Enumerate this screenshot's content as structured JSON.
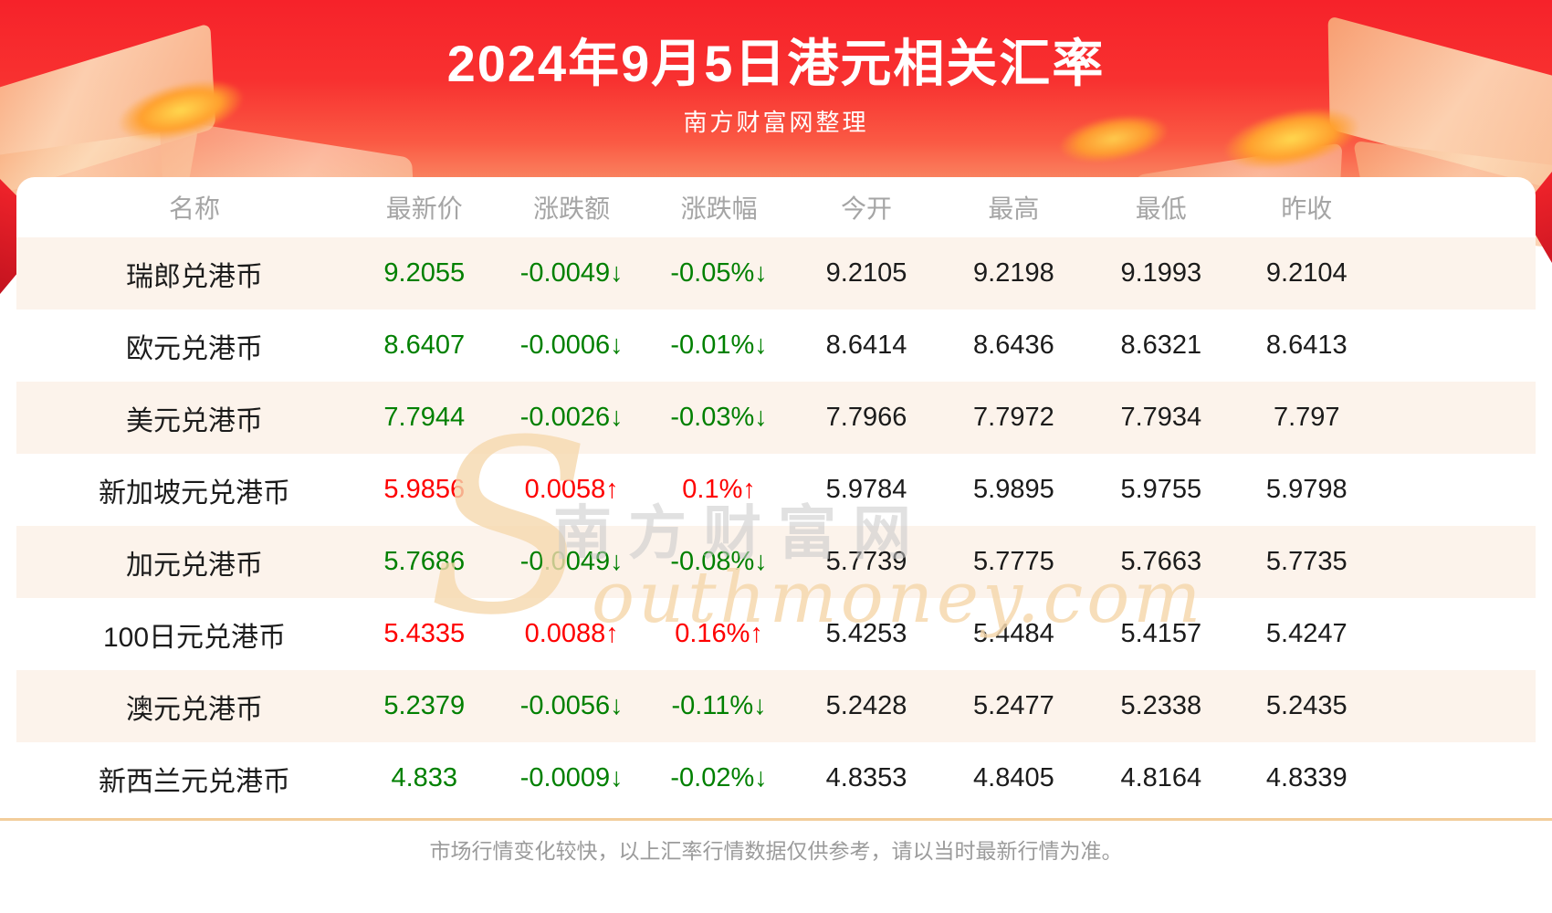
{
  "banner": {
    "title": "2024年9月5日港元相关汇率",
    "subtitle": "南方财富网整理"
  },
  "table": {
    "columns": [
      {
        "key": "name",
        "label": "名称"
      },
      {
        "key": "latest",
        "label": "最新价"
      },
      {
        "key": "change",
        "label": "涨跌额"
      },
      {
        "key": "change_pct",
        "label": "涨跌幅"
      },
      {
        "key": "open",
        "label": "今开"
      },
      {
        "key": "high",
        "label": "最高"
      },
      {
        "key": "low",
        "label": "最低"
      },
      {
        "key": "prev_close",
        "label": "昨收"
      }
    ],
    "rows": [
      {
        "name": "瑞郎兑港币",
        "latest": "9.2055",
        "change": "-0.0049↓",
        "change_pct": "-0.05%↓",
        "open": "9.2105",
        "high": "9.2198",
        "low": "9.1993",
        "prev_close": "9.2104",
        "trend": "down"
      },
      {
        "name": "欧元兑港币",
        "latest": "8.6407",
        "change": "-0.0006↓",
        "change_pct": "-0.01%↓",
        "open": "8.6414",
        "high": "8.6436",
        "low": "8.6321",
        "prev_close": "8.6413",
        "trend": "down"
      },
      {
        "name": "美元兑港币",
        "latest": "7.7944",
        "change": "-0.0026↓",
        "change_pct": "-0.03%↓",
        "open": "7.7966",
        "high": "7.7972",
        "low": "7.7934",
        "prev_close": "7.797",
        "trend": "down"
      },
      {
        "name": "新加坡元兑港币",
        "latest": "5.9856",
        "change": "0.0058↑",
        "change_pct": "0.1%↑",
        "open": "5.9784",
        "high": "5.9895",
        "low": "5.9755",
        "prev_close": "5.9798",
        "trend": "up"
      },
      {
        "name": "加元兑港币",
        "latest": "5.7686",
        "change": "-0.0049↓",
        "change_pct": "-0.08%↓",
        "open": "5.7739",
        "high": "5.7775",
        "low": "5.7663",
        "prev_close": "5.7735",
        "trend": "down"
      },
      {
        "name": "100日元兑港币",
        "latest": "5.4335",
        "change": "0.0088↑",
        "change_pct": "0.16%↑",
        "open": "5.4253",
        "high": "5.4484",
        "low": "5.4157",
        "prev_close": "5.4247",
        "trend": "up"
      },
      {
        "name": "澳元兑港币",
        "latest": "5.2379",
        "change": "-0.0056↓",
        "change_pct": "-0.11%↓",
        "open": "5.2428",
        "high": "5.2477",
        "low": "5.2338",
        "prev_close": "5.2435",
        "trend": "down"
      },
      {
        "name": "新西兰元兑港币",
        "latest": "4.833",
        "change": "-0.0009↓",
        "change_pct": "-0.02%↓",
        "open": "4.8353",
        "high": "4.8405",
        "low": "4.8164",
        "prev_close": "4.8339",
        "trend": "down"
      }
    ]
  },
  "watermark": {
    "cn": "南方财富网",
    "en_initial": "S",
    "en_rest": "outhmoney.com"
  },
  "footer": {
    "note": "市场行情变化较快，以上汇率行情数据仅供参考，请以当时最新行情为准。"
  },
  "colors": {
    "up": "#fe0000",
    "down": "#008000",
    "row_alt": "#fcf3eb",
    "banner_red": "#f6222a",
    "divider": "#f2cd9b",
    "header_text": "#a5a5a5",
    "cell_text": "#1b1b1b",
    "footer_text": "#9b9b9b",
    "watermark_tan": "#f6d9ae",
    "watermark_gray": "#c9c9c9"
  }
}
